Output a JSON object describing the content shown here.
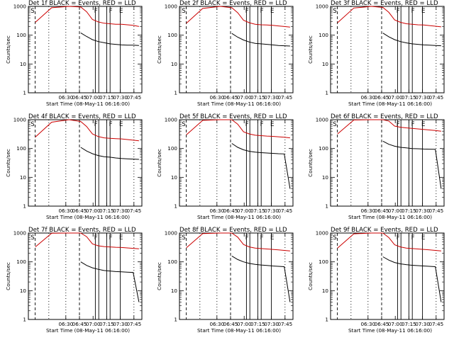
{
  "chart_data": [
    {
      "type": "line",
      "title": "Det 1f BLACK = Events, RED = LLD",
      "panel": 0,
      "ylabel": "Counts/sec",
      "xlabel": "Start Time (08-May-11 06:16:00)",
      "xticks": [
        "06:30",
        "06:45",
        "07:00",
        "07:15",
        "07:30",
        "07:45"
      ],
      "yticks": [
        "1",
        "10",
        "100",
        "1000"
      ],
      "ylim": [
        1,
        1000
      ],
      "yscale": "log",
      "markers": [
        "S",
        "F",
        "F",
        "E"
      ],
      "series": [
        {
          "color": "#cc0000",
          "x": [
            -0.78,
            -0.5,
            -0.2,
            0.0,
            0.1,
            0.2,
            0.3,
            0.4,
            0.5,
            0.6,
            0.7,
            0.8,
            0.9,
            1.0
          ],
          "y": [
            280,
            900,
            1000,
            950,
            650,
            350,
            290,
            260,
            250,
            240,
            240,
            230,
            220,
            200
          ]
        },
        {
          "color": "#000000",
          "x": [
            0.0,
            0.1,
            0.2,
            0.3,
            0.4,
            0.5,
            0.6,
            0.7,
            0.8,
            0.9,
            1.0
          ],
          "y": [
            120,
            90,
            70,
            60,
            55,
            50,
            48,
            46,
            45,
            45,
            44
          ]
        }
      ]
    },
    {
      "type": "line",
      "title": "Det 2f BLACK = Events, RED = LLD",
      "panel": 1,
      "ylabel": "Counts/sec",
      "xlabel": "Start Time (08-May-11 06:16:00)",
      "xticks": [
        "06:30",
        "06:45",
        "07:00",
        "07:15",
        "07:30",
        "07:45"
      ],
      "yticks": [
        "1",
        "10",
        "100",
        "1000"
      ],
      "ylim": [
        1,
        1000
      ],
      "yscale": "log",
      "markers": [
        "S",
        "F",
        "F",
        "E"
      ],
      "series": [
        {
          "color": "#cc0000",
          "x": [
            -0.78,
            -0.5,
            -0.2,
            0.0,
            0.1,
            0.2,
            0.3,
            0.4,
            0.5,
            0.6,
            0.7,
            0.8,
            0.9,
            1.0
          ],
          "y": [
            260,
            850,
            1000,
            900,
            600,
            330,
            270,
            240,
            230,
            225,
            220,
            210,
            200,
            190
          ]
        },
        {
          "color": "#000000",
          "x": [
            0.0,
            0.1,
            0.2,
            0.3,
            0.4,
            0.5,
            0.6,
            0.7,
            0.8,
            0.9,
            1.0
          ],
          "y": [
            115,
            85,
            68,
            58,
            52,
            50,
            48,
            46,
            44,
            43,
            42
          ]
        }
      ]
    },
    {
      "type": "line",
      "title": "Det 3f BLACK = Events, RED = LLD",
      "panel": 2,
      "ylabel": "Counts/sec",
      "xlabel": "Start Time (08-May-11 06:16:00)",
      "xticks": [
        "06:30",
        "06:45",
        "07:00",
        "07:15",
        "07:30",
        "07:45"
      ],
      "yticks": [
        "1",
        "10",
        "100",
        "1000"
      ],
      "ylim": [
        1,
        1000
      ],
      "yscale": "log",
      "markers": [
        "S",
        "F",
        "F",
        "E"
      ],
      "series": [
        {
          "color": "#cc0000",
          "x": [
            -0.78,
            -0.5,
            -0.2,
            0.0,
            0.1,
            0.2,
            0.3,
            0.4,
            0.5,
            0.6,
            0.7,
            0.8,
            0.9,
            1.0
          ],
          "y": [
            270,
            880,
            1000,
            920,
            620,
            340,
            280,
            250,
            240,
            230,
            225,
            215,
            205,
            195
          ]
        },
        {
          "color": "#000000",
          "x": [
            0.0,
            0.1,
            0.2,
            0.3,
            0.4,
            0.5,
            0.6,
            0.7,
            0.8,
            0.9,
            1.0
          ],
          "y": [
            118,
            88,
            70,
            60,
            54,
            50,
            48,
            46,
            45,
            44,
            43
          ]
        }
      ]
    },
    {
      "type": "line",
      "title": "Det 4f BLACK = Events, RED = LLD",
      "panel": 3,
      "ylabel": "Counts/sec",
      "xlabel": "Start Time (08-May-11 06:16:00)",
      "xticks": [
        "06:30",
        "06:45",
        "07:00",
        "07:15",
        "07:30",
        "07:45"
      ],
      "yticks": [
        "1",
        "10",
        "100",
        "1000"
      ],
      "ylim": [
        1,
        1000
      ],
      "yscale": "log",
      "markers": [
        "S",
        "F",
        "F",
        "E"
      ],
      "series": [
        {
          "color": "#cc0000",
          "x": [
            -0.78,
            -0.5,
            -0.2,
            0.0,
            0.1,
            0.2,
            0.3,
            0.4,
            0.5,
            0.6,
            0.7,
            0.8,
            0.9,
            1.0
          ],
          "y": [
            250,
            820,
            1000,
            870,
            580,
            320,
            260,
            235,
            225,
            220,
            215,
            205,
            195,
            185
          ]
        },
        {
          "color": "#000000",
          "x": [
            0.0,
            0.1,
            0.2,
            0.3,
            0.4,
            0.5,
            0.6,
            0.7,
            0.8,
            0.9,
            1.0
          ],
          "y": [
            110,
            82,
            66,
            57,
            52,
            50,
            47,
            45,
            44,
            43,
            42
          ]
        }
      ]
    },
    {
      "type": "line",
      "title": "Det 5f BLACK = Events, RED = LLD",
      "panel": 4,
      "ylabel": "Counts/sec",
      "xlabel": "Start Time (08-May-11 06:16:00)",
      "xticks": [
        "06:30",
        "06:45",
        "07:00",
        "07:15",
        "07:30",
        "07:45"
      ],
      "yticks": [
        "1",
        "10",
        "100",
        "1000"
      ],
      "ylim": [
        1,
        1000
      ],
      "yscale": "log",
      "markers": [
        "S",
        "F",
        "F",
        "E"
      ],
      "series": [
        {
          "color": "#cc0000",
          "x": [
            -0.78,
            -0.5,
            -0.2,
            0.0,
            0.1,
            0.2,
            0.3,
            0.4,
            0.5,
            0.6,
            0.7,
            0.8,
            0.9,
            1.0
          ],
          "y": [
            300,
            950,
            1000,
            1000,
            700,
            380,
            320,
            290,
            280,
            270,
            265,
            255,
            245,
            235
          ]
        },
        {
          "color": "#000000",
          "x": [
            0.0,
            0.1,
            0.2,
            0.3,
            0.4,
            0.5,
            0.6,
            0.7,
            0.8,
            0.9,
            1.0
          ],
          "y": [
            150,
            110,
            90,
            80,
            75,
            72,
            70,
            68,
            66,
            65,
            4
          ]
        }
      ]
    },
    {
      "type": "line",
      "title": "Det 6f BLACK = Events, RED = LLD",
      "panel": 5,
      "ylabel": "Counts/sec",
      "xlabel": "Start Time (08-May-11 06:16:00)",
      "xticks": [
        "06:30",
        "06:45",
        "07:00",
        "07:15",
        "07:30",
        "07:45"
      ],
      "yticks": [
        "1",
        "10",
        "100",
        "1000"
      ],
      "ylim": [
        1,
        1000
      ],
      "yscale": "log",
      "markers": [
        "S",
        "F",
        "F",
        "E"
      ],
      "series": [
        {
          "color": "#cc0000",
          "x": [
            -0.78,
            -0.5,
            -0.2,
            0.0,
            0.1,
            0.2,
            0.3,
            0.4,
            0.5,
            0.6,
            0.7,
            0.8,
            0.9,
            1.0
          ],
          "y": [
            320,
            980,
            1000,
            1000,
            900,
            600,
            550,
            520,
            500,
            480,
            460,
            440,
            420,
            400
          ]
        },
        {
          "color": "#000000",
          "x": [
            0.0,
            0.1,
            0.2,
            0.3,
            0.4,
            0.5,
            0.6,
            0.7,
            0.8,
            0.9,
            1.0
          ],
          "y": [
            180,
            140,
            120,
            110,
            105,
            100,
            98,
            96,
            95,
            94,
            4
          ]
        }
      ]
    },
    {
      "type": "line",
      "title": "Det 7f BLACK = Events, RED = LLD",
      "panel": 6,
      "ylabel": "Counts/sec",
      "xlabel": "Start Time (08-May-11 06:16:00)",
      "xticks": [
        "06:30",
        "06:45",
        "07:00",
        "07:15",
        "07:30",
        "07:45"
      ],
      "yticks": [
        "1",
        "10",
        "100",
        "1000"
      ],
      "ylim": [
        1,
        1000
      ],
      "yscale": "log",
      "markers": [
        "S",
        "F",
        "F",
        "E"
      ],
      "series": [
        {
          "color": "#cc0000",
          "x": [
            -0.78,
            -0.5,
            -0.2,
            0.0,
            0.1,
            0.2,
            0.3,
            0.4,
            0.5,
            0.6,
            0.7,
            0.8,
            0.9,
            1.0
          ],
          "y": [
            330,
            990,
            1000,
            1000,
            750,
            420,
            360,
            340,
            330,
            320,
            315,
            305,
            295,
            285
          ]
        },
        {
          "color": "#000000",
          "x": [
            0.0,
            0.1,
            0.2,
            0.3,
            0.4,
            0.5,
            0.6,
            0.7,
            0.8,
            0.9,
            1.0
          ],
          "y": [
            100,
            75,
            62,
            55,
            50,
            48,
            46,
            45,
            44,
            43,
            4
          ]
        }
      ]
    },
    {
      "type": "line",
      "title": "Det 8f BLACK = Events, RED = LLD",
      "panel": 7,
      "ylabel": "Counts/sec",
      "xlabel": "Start Time (08-May-11 06:16:00)",
      "xticks": [
        "06:30",
        "06:45",
        "07:00",
        "07:15",
        "07:30",
        "07:45"
      ],
      "yticks": [
        "1",
        "10",
        "100",
        "1000"
      ],
      "ylim": [
        1,
        1000
      ],
      "yscale": "log",
      "markers": [
        "S",
        "F",
        "F",
        "E"
      ],
      "series": [
        {
          "color": "#cc0000",
          "x": [
            -0.78,
            -0.5,
            -0.2,
            0.0,
            0.1,
            0.2,
            0.3,
            0.4,
            0.5,
            0.6,
            0.7,
            0.8,
            0.9,
            1.0
          ],
          "y": [
            310,
            960,
            1000,
            1000,
            720,
            400,
            330,
            300,
            290,
            280,
            270,
            260,
            250,
            240
          ]
        },
        {
          "color": "#000000",
          "x": [
            0.0,
            0.1,
            0.2,
            0.3,
            0.4,
            0.5,
            0.6,
            0.7,
            0.8,
            0.9,
            1.0
          ],
          "y": [
            160,
            120,
            100,
            88,
            82,
            78,
            75,
            72,
            70,
            68,
            4
          ]
        }
      ]
    },
    {
      "type": "line",
      "title": "Det 9f BLACK = Events, RED = LLD",
      "panel": 8,
      "ylabel": "Counts/sec",
      "xlabel": "Start Time (08-May-11 06:16:00)",
      "xticks": [
        "06:30",
        "06:45",
        "07:00",
        "07:15",
        "07:30",
        "07:45"
      ],
      "yticks": [
        "1",
        "10",
        "100",
        "1000"
      ],
      "ylim": [
        1,
        1000
      ],
      "yscale": "log",
      "markers": [
        "S",
        "F",
        "F",
        "E"
      ],
      "series": [
        {
          "color": "#cc0000",
          "x": [
            -0.78,
            -0.5,
            -0.2,
            0.0,
            0.1,
            0.2,
            0.3,
            0.4,
            0.5,
            0.6,
            0.7,
            0.8,
            0.9,
            1.0
          ],
          "y": [
            300,
            940,
            1000,
            1000,
            700,
            390,
            330,
            300,
            290,
            280,
            270,
            260,
            250,
            240
          ]
        },
        {
          "color": "#000000",
          "x": [
            0.0,
            0.1,
            0.2,
            0.3,
            0.4,
            0.5,
            0.6,
            0.7,
            0.8,
            0.9,
            1.0
          ],
          "y": [
            150,
            115,
            95,
            85,
            80,
            76,
            74,
            72,
            70,
            68,
            4
          ]
        }
      ]
    }
  ]
}
